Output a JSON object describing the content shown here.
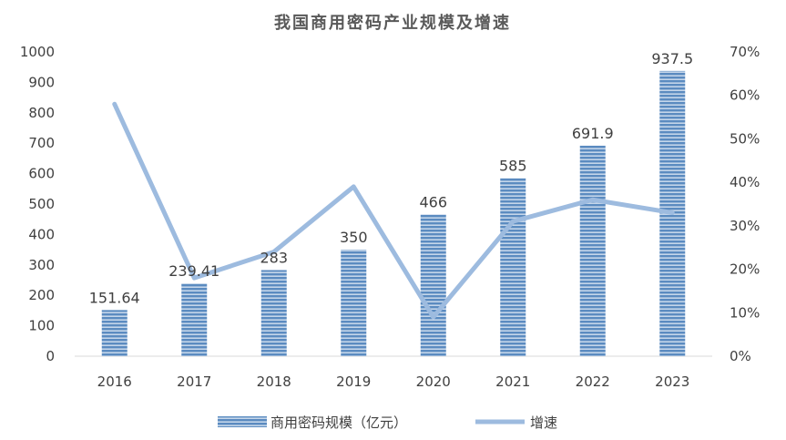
{
  "chart_data": {
    "type": "bar",
    "title": "我国商用密码产业规模及增速",
    "categories": [
      "2016",
      "2017",
      "2018",
      "2019",
      "2020",
      "2021",
      "2022",
      "2023"
    ],
    "series": [
      {
        "name": "商用密码规模（亿元）",
        "type": "bar",
        "axis": "left",
        "values": [
          151.64,
          239.41,
          283,
          350,
          466,
          585,
          691.9,
          937.5
        ],
        "data_labels": [
          "151.64",
          "239.41",
          "283",
          "350",
          "466",
          "585",
          "691.9",
          "937.5"
        ]
      },
      {
        "name": "增速",
        "type": "line",
        "axis": "right",
        "values": [
          0.58,
          0.18,
          0.24,
          0.39,
          0.09,
          0.31,
          0.36,
          0.33
        ]
      }
    ],
    "y_left": {
      "ylim": [
        0,
        1000
      ],
      "ticks": [
        "0",
        "100",
        "200",
        "300",
        "400",
        "500",
        "600",
        "700",
        "800",
        "900",
        "1000"
      ]
    },
    "y_right": {
      "ylim": [
        0,
        0.7
      ],
      "ticks": [
        "0%",
        "10%",
        "20%",
        "30%",
        "40%",
        "50%",
        "60%",
        "70%"
      ]
    },
    "grid": false,
    "legend": "bottom",
    "colors": {
      "bar": "#5b8bc0",
      "bar_stripe": "#c5d6ea",
      "line": "#9dbbdf",
      "text": "#404040"
    }
  }
}
